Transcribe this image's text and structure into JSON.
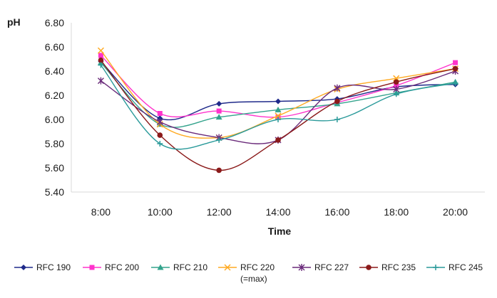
{
  "chart_data": {
    "type": "line",
    "title": "",
    "xlabel": "Time",
    "ylabel": "pH",
    "ylim": [
      5.4,
      6.8
    ],
    "yticks": [
      "5.40",
      "5.60",
      "5.80",
      "6.00",
      "6.20",
      "6.40",
      "6.60",
      "6.80"
    ],
    "categories": [
      "8:00",
      "10:00",
      "12:00",
      "14:00",
      "16:00",
      "18:00",
      "20:00"
    ],
    "grid": false,
    "legend_position": "bottom",
    "series": [
      {
        "name": "RFC 190",
        "color": "#1f2a8a",
        "marker": "diamond",
        "values": [
          6.48,
          6.01,
          6.13,
          6.15,
          6.17,
          6.27,
          6.29
        ]
      },
      {
        "name": "RFC 200",
        "color": "#ff33cc",
        "marker": "square",
        "values": [
          6.53,
          6.05,
          6.07,
          6.02,
          6.14,
          6.28,
          6.47
        ]
      },
      {
        "name": "RFC 210",
        "color": "#33a38c",
        "marker": "triangle",
        "values": [
          6.47,
          5.96,
          6.02,
          6.08,
          6.13,
          6.22,
          6.31
        ]
      },
      {
        "name": "RFC 220",
        "sublabel": "(=max)",
        "color": "#ffaa22",
        "marker": "x",
        "values": [
          6.57,
          5.96,
          5.85,
          6.03,
          6.25,
          6.34,
          6.42
        ]
      },
      {
        "name": "RFC 227",
        "color": "#6a2a7a",
        "marker": "star",
        "values": [
          6.32,
          5.98,
          5.85,
          5.83,
          6.26,
          6.25,
          6.4
        ]
      },
      {
        "name": "RFC 235",
        "color": "#8b1a1a",
        "marker": "circle",
        "values": [
          6.49,
          5.87,
          5.58,
          5.83,
          6.15,
          6.31,
          6.42
        ]
      },
      {
        "name": "RFC 245",
        "color": "#2a9a9a",
        "marker": "plus",
        "values": [
          6.45,
          5.8,
          5.83,
          6.0,
          6.0,
          6.21,
          6.3
        ]
      }
    ]
  }
}
